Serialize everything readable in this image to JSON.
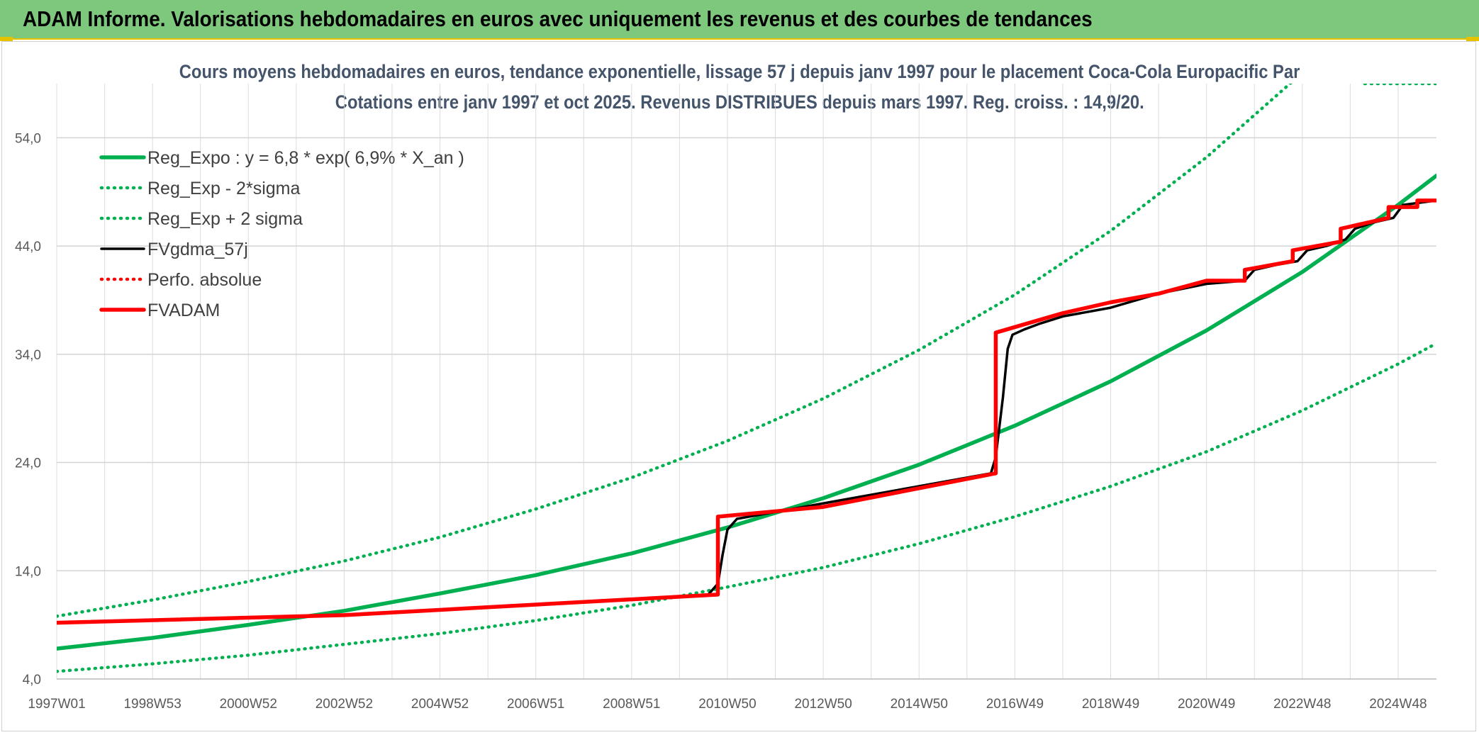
{
  "banner": {
    "title": "ADAM Informe. Valorisations hebdomadaires en euros avec uniquement les revenus et des courbes de tendances",
    "background": "#7ec87e"
  },
  "chart_data": {
    "type": "line",
    "title_line1": "Cours moyens hebdomadaires en euros, tendance exponentielle, lissage 57 j depuis janv 1997 pour le placement Coca-Cola Europacific Par",
    "title_line2": "Cotations entre janv 1997 et oct 2025. Revenus DISTRIBUES depuis mars 1997. Reg. croiss. : 14,9/20.",
    "x_tick_labels": [
      "1997W01",
      "1998W53",
      "2000W52",
      "2002W52",
      "2004W52",
      "2006W51",
      "2008W51",
      "2010W50",
      "2012W50",
      "2014W50",
      "2016W49",
      "2018W49",
      "2020W49",
      "2022W48",
      "2024W48"
    ],
    "x_tick_years": [
      1997.0,
      1999.0,
      2001.0,
      2003.0,
      2005.0,
      2007.0,
      2009.0,
      2011.0,
      2013.0,
      2015.0,
      2017.0,
      2019.0,
      2021.0,
      2023.0,
      2025.0
    ],
    "xlim": [
      1997.0,
      2025.8
    ],
    "ylim": [
      4.0,
      59.0
    ],
    "y_ticks": [
      4.0,
      14.0,
      24.0,
      34.0,
      44.0,
      54.0
    ],
    "y_tick_labels": [
      "4,0",
      "14,0",
      "24,0",
      "34,0",
      "44,0",
      "54,0"
    ],
    "grid": true,
    "legend_position": "top-left",
    "series": [
      {
        "name": "Reg_Expo : y = 6,8 * exp( 6,9% *  X_an )",
        "style": "solid-thick",
        "color": "#00b050",
        "x": [
          1997,
          1999,
          2001,
          2003,
          2005,
          2007,
          2009,
          2011,
          2013,
          2015,
          2017,
          2019,
          2021,
          2023,
          2025,
          2025.8
        ],
        "y": [
          6.8,
          7.8,
          9.0,
          10.3,
          11.9,
          13.6,
          15.6,
          18.0,
          20.7,
          23.8,
          27.4,
          31.5,
          36.2,
          41.6,
          47.8,
          50.5
        ]
      },
      {
        "name": "Reg_Exp - 2*sigma",
        "style": "dotted",
        "color": "#00b050",
        "x": [
          1997,
          1999,
          2001,
          2003,
          2005,
          2007,
          2009,
          2011,
          2013,
          2015,
          2017,
          2019,
          2021,
          2023,
          2025,
          2025.8
        ],
        "y": [
          4.7,
          5.4,
          6.2,
          7.2,
          8.2,
          9.4,
          10.8,
          12.5,
          14.3,
          16.5,
          19.0,
          21.8,
          25.0,
          28.8,
          33.1,
          35.0
        ]
      },
      {
        "name": "Reg_Exp + 2 sigma",
        "style": "dotted",
        "color": "#00b050",
        "x": [
          1997,
          1999,
          2001,
          2003,
          2005,
          2007,
          2009,
          2011,
          2013,
          2015,
          2017,
          2019,
          2021,
          2023,
          2024.05,
          2024.3,
          2024.6,
          2025.8
        ],
        "y": [
          9.8,
          11.3,
          13.0,
          14.9,
          17.1,
          19.7,
          22.6,
          26.0,
          29.9,
          34.4,
          39.5,
          45.4,
          52.2,
          60.0,
          64.5,
          59.0,
          59.0,
          59.0
        ]
      },
      {
        "name": "FVgdma_57j",
        "style": "solid",
        "color": "#000000",
        "x": [
          1997,
          2003,
          2010.6,
          2010.8,
          2010.9,
          2011.0,
          2011.2,
          2016.5,
          2016.6,
          2016.75,
          2016.85,
          2016.95,
          2017.2,
          2017.5,
          2018,
          2019,
          2020,
          2021,
          2021.8,
          2022.0,
          2022.5,
          2022.9,
          2023.1,
          2023.5,
          2023.9,
          2024.1,
          2024.5,
          2024.9,
          2025.1,
          2025.8
        ],
        "y": [
          9.2,
          9.9,
          11.8,
          12.8,
          15.5,
          17.8,
          18.8,
          23.0,
          24.5,
          30.0,
          34.5,
          35.8,
          36.3,
          36.8,
          37.5,
          38.3,
          39.6,
          40.5,
          40.8,
          41.8,
          42.3,
          42.6,
          43.6,
          44.0,
          44.6,
          45.6,
          46.2,
          46.6,
          47.8,
          48.2
        ]
      },
      {
        "name": "Perfo. absolue",
        "style": "dotted",
        "color": "#ff0000",
        "x": [],
        "y": []
      },
      {
        "name": "FVADAM",
        "style": "solid-thick",
        "color": "#ff0000",
        "x": [
          1997,
          2003,
          2010.8,
          2010.8,
          2013,
          2016.6,
          2016.6,
          2018,
          2019,
          2020,
          2021,
          2021.8,
          2021.8,
          2022.8,
          2022.8,
          2023.8,
          2023.8,
          2024.8,
          2024.8,
          2025.4,
          2025.4,
          2025.8
        ],
        "y": [
          9.2,
          9.9,
          11.8,
          19.0,
          19.9,
          23.0,
          36.0,
          37.8,
          38.8,
          39.6,
          40.8,
          40.8,
          41.8,
          42.6,
          43.6,
          44.4,
          45.6,
          46.6,
          47.6,
          47.6,
          48.2,
          48.2
        ]
      }
    ]
  }
}
